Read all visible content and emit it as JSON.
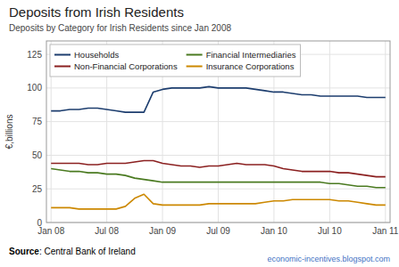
{
  "chart_data": {
    "type": "line",
    "title": "Deposits from Irish Residents",
    "subtitle": "Deposits by Category for Irish Residents since Jan 2008",
    "y_label": "€,billions",
    "annotations": [
      "Source",
      ": Central Bank of Ireland",
      "economic-incentives.blogspot.com"
    ],
    "categories": [
      "Jan 08",
      null,
      null,
      null,
      null,
      null,
      "Jul 08",
      null,
      null,
      null,
      null,
      null,
      "Jan 09",
      null,
      null,
      null,
      null,
      null,
      "Jul 09",
      null,
      null,
      null,
      null,
      null,
      "Jan 10",
      null,
      null,
      null,
      null,
      null,
      "Jul 10",
      null,
      null,
      null,
      null,
      null,
      "Jan 11"
    ],
    "series": [
      {
        "name": "Households",
        "color": "#1c3d6e",
        "values": [
          83,
          83,
          84,
          84,
          85,
          85,
          84,
          83,
          82,
          82,
          82,
          97,
          99,
          100,
          100,
          100,
          100,
          101,
          100,
          100,
          100,
          100,
          99,
          98,
          97,
          97,
          96,
          95,
          95,
          94,
          94,
          94,
          94,
          94,
          93,
          93,
          93
        ]
      },
      {
        "name": "Non-Financial Corporations",
        "color": "#8b2020",
        "values": [
          44,
          44,
          44,
          44,
          43,
          43,
          44,
          44,
          44,
          45,
          46,
          46,
          44,
          43,
          42,
          42,
          41,
          42,
          42,
          43,
          44,
          43,
          43,
          43,
          42,
          40,
          39,
          38,
          38,
          38,
          38,
          37,
          37,
          36,
          35,
          34,
          34
        ]
      },
      {
        "name": "Financial Intermediaries",
        "color": "#4a7a20",
        "values": [
          40,
          39,
          38,
          38,
          37,
          37,
          36,
          36,
          35,
          33,
          32,
          31,
          30,
          30,
          30,
          30,
          30,
          30,
          30,
          30,
          30,
          30,
          30,
          30,
          30,
          30,
          30,
          30,
          30,
          30,
          29,
          29,
          28,
          27,
          27,
          26,
          26
        ]
      },
      {
        "name": "Insurance Corporations",
        "color": "#cc8800",
        "values": [
          11,
          11,
          11,
          10,
          10,
          10,
          10,
          10,
          12,
          18,
          21,
          14,
          13,
          13,
          13,
          13,
          13,
          14,
          14,
          14,
          14,
          14,
          14,
          15,
          16,
          16,
          17,
          17,
          17,
          17,
          17,
          16,
          16,
          15,
          14,
          13,
          13
        ]
      }
    ],
    "ylim": [
      0,
      135
    ],
    "yticks": [
      0,
      25,
      50,
      75,
      100,
      125
    ],
    "grid": true,
    "legend": "upper left"
  }
}
